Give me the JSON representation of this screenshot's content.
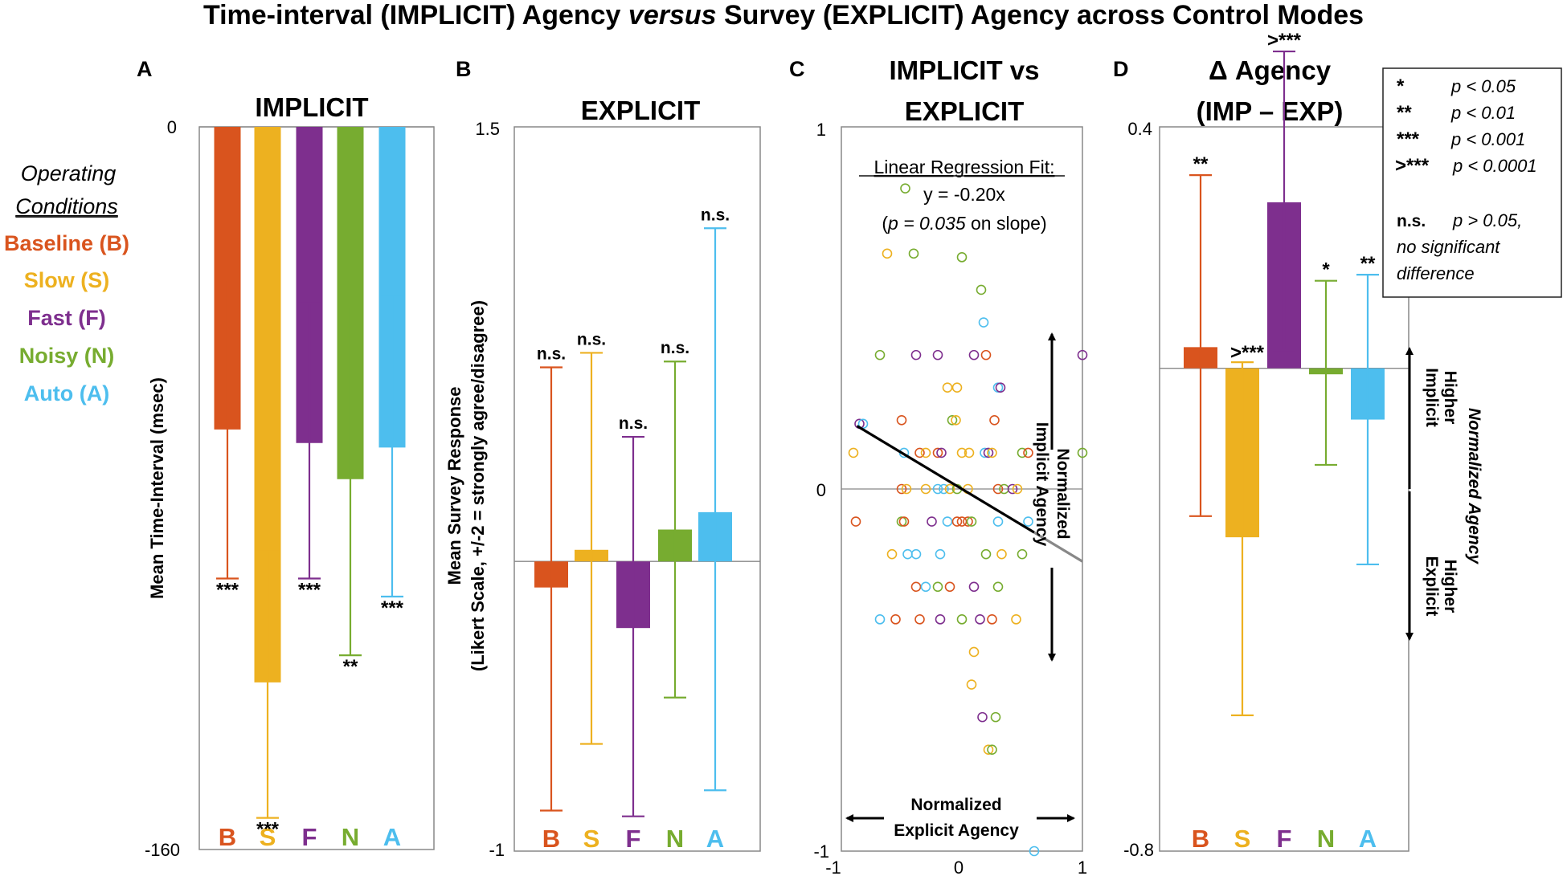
{
  "title": {
    "before": "Time-interval (IMPLICIT) Agency ",
    "italic": "versus",
    "after": " Survey (EXPLICIT) Agency across Control Modes"
  },
  "legend": {
    "heading_line1": "Operating",
    "heading_line2": "Conditions",
    "items": [
      {
        "label": "Baseline (B)",
        "color": "#d9541e"
      },
      {
        "label": "Slow (S)",
        "color": "#edb120"
      },
      {
        "label": "Fast (F)",
        "color": "#7e2f8e"
      },
      {
        "label": "Noisy (N)",
        "color": "#77ac30"
      },
      {
        "label": "Auto (A)",
        "color": "#4dbeee"
      }
    ]
  },
  "significance_key": {
    "rows": [
      {
        "stars": "*",
        "text": "p < 0.05"
      },
      {
        "stars": "**",
        "text": "p < 0.01"
      },
      {
        "stars": "***",
        "text": "p < 0.001"
      },
      {
        "stars": ">***",
        "text": "p < 0.0001"
      }
    ],
    "ns_label": "n.s.",
    "ns_text": "p > 0.05,",
    "ns_line2": "no significant",
    "ns_line3": "difference"
  },
  "chart_data": [
    {
      "panel": "A",
      "type": "bar",
      "title": "IMPLICIT",
      "ylabel": "Mean Time-Interval (msec)",
      "ylim": [
        -160,
        0
      ],
      "yticks": [
        {
          "value": 0,
          "label": "0"
        },
        {
          "value": -160,
          "label": "-160"
        }
      ],
      "categories": [
        "B",
        "S",
        "F",
        "N",
        "A"
      ],
      "colors": [
        "#d9541e",
        "#edb120",
        "#7e2f8e",
        "#77ac30",
        "#4dbeee"
      ],
      "values": [
        -67,
        -123,
        -70,
        -78,
        -71
      ],
      "err_low": [
        -100,
        -153,
        -100,
        -117,
        -104
      ],
      "err_high": [
        -34,
        -94,
        -39,
        -40,
        -37
      ],
      "significance": [
        "***",
        "***",
        "***",
        "**",
        "***"
      ]
    },
    {
      "panel": "B",
      "type": "bar",
      "title": "EXPLICIT",
      "ylabel_line1": "Mean Survey Response",
      "ylabel_line2": "(Likert Scale, +/-2 = strongly agree/disagree)",
      "ylim": [
        -1,
        1.5
      ],
      "yticks": [
        {
          "value": 1.5,
          "label": "1.5"
        },
        {
          "value": -1,
          "label": "-1"
        }
      ],
      "categories": [
        "B",
        "S",
        "F",
        "N",
        "A"
      ],
      "colors": [
        "#d9541e",
        "#edb120",
        "#7e2f8e",
        "#77ac30",
        "#4dbeee"
      ],
      "values": [
        -0.09,
        0.04,
        -0.23,
        0.11,
        0.17
      ],
      "err_low": [
        -0.86,
        -0.63,
        -0.88,
        -0.47,
        -0.79
      ],
      "err_high": [
        0.67,
        0.72,
        0.43,
        0.69,
        1.15
      ],
      "significance": [
        "n.s.",
        "n.s.",
        "n.s.",
        "n.s.",
        "n.s."
      ]
    },
    {
      "panel": "C",
      "type": "scatter",
      "title_line1": "IMPLICIT vs",
      "title_line2": "EXPLICIT",
      "xlim": [
        -1,
        1
      ],
      "ylim": [
        -1,
        1
      ],
      "xticks": [
        {
          "value": -1,
          "label": "-1"
        },
        {
          "value": 0,
          "label": "0"
        },
        {
          "value": 1,
          "label": "1"
        }
      ],
      "yticks": [
        {
          "value": 1,
          "label": "1"
        },
        {
          "value": 0,
          "label": "0"
        },
        {
          "value": -1,
          "label": "-1"
        }
      ],
      "xlabel_line1": "Normalized",
      "xlabel_line2": "Explicit Agency",
      "ylabel_line1": "Normalized",
      "ylabel_line2": "Implicit Agency",
      "regression_heading": "Linear Regression Fit:",
      "regression_eq": "y = -0.20x",
      "regression_p_before": "(",
      "regression_p_italic": "p = 0.035",
      "regression_p_after": " on slope)",
      "slope": -0.2,
      "fit_extent": [
        -0.87,
        0.6
      ],
      "fit_dim_extent": [
        0.6,
        1.0
      ],
      "points": [
        {
          "x": -0.62,
          "y": 0.65,
          "c": 1
        },
        {
          "x": -0.4,
          "y": 0.65,
          "c": 3
        },
        {
          "x": 0.0,
          "y": 0.64,
          "c": 3
        },
        {
          "x": 0.16,
          "y": 0.55,
          "c": 3
        },
        {
          "x": 0.18,
          "y": 0.46,
          "c": 4
        },
        {
          "x": -0.68,
          "y": 0.37,
          "c": 3
        },
        {
          "x": -0.38,
          "y": 0.37,
          "c": 2
        },
        {
          "x": -0.2,
          "y": 0.37,
          "c": 2
        },
        {
          "x": 0.1,
          "y": 0.37,
          "c": 2
        },
        {
          "x": 0.2,
          "y": 0.37,
          "c": 0
        },
        {
          "x": 1.0,
          "y": 0.37,
          "c": 2
        },
        {
          "x": -0.12,
          "y": 0.28,
          "c": 1
        },
        {
          "x": -0.04,
          "y": 0.28,
          "c": 1
        },
        {
          "x": 0.3,
          "y": 0.28,
          "c": 4
        },
        {
          "x": 0.32,
          "y": 0.28,
          "c": 2
        },
        {
          "x": -0.5,
          "y": 0.19,
          "c": 0
        },
        {
          "x": -0.08,
          "y": 0.19,
          "c": 3
        },
        {
          "x": -0.05,
          "y": 0.19,
          "c": 1
        },
        {
          "x": 0.27,
          "y": 0.19,
          "c": 0
        },
        {
          "x": -0.85,
          "y": 0.18,
          "c": 2
        },
        {
          "x": -0.82,
          "y": 0.18,
          "c": 4
        },
        {
          "x": -0.48,
          "y": 0.1,
          "c": 4
        },
        {
          "x": -0.35,
          "y": 0.1,
          "c": 0
        },
        {
          "x": -0.3,
          "y": 0.1,
          "c": 1
        },
        {
          "x": -0.2,
          "y": 0.1,
          "c": 0
        },
        {
          "x": -0.17,
          "y": 0.1,
          "c": 2
        },
        {
          "x": 0.0,
          "y": 0.1,
          "c": 1
        },
        {
          "x": 0.06,
          "y": 0.1,
          "c": 1
        },
        {
          "x": 0.19,
          "y": 0.1,
          "c": 4
        },
        {
          "x": 0.22,
          "y": 0.1,
          "c": 2
        },
        {
          "x": 0.25,
          "y": 0.1,
          "c": 1
        },
        {
          "x": 0.5,
          "y": 0.1,
          "c": 3
        },
        {
          "x": 0.55,
          "y": 0.1,
          "c": 0
        },
        {
          "x": -0.9,
          "y": 0.1,
          "c": 1
        },
        {
          "x": 1.0,
          "y": 0.1,
          "c": 3
        },
        {
          "x": -0.5,
          "y": 0.0,
          "c": 0
        },
        {
          "x": -0.46,
          "y": 0.0,
          "c": 1
        },
        {
          "x": -0.3,
          "y": 0.0,
          "c": 1
        },
        {
          "x": -0.2,
          "y": 0.0,
          "c": 4
        },
        {
          "x": -0.15,
          "y": 0.0,
          "c": 4
        },
        {
          "x": -0.1,
          "y": 0.0,
          "c": 1
        },
        {
          "x": -0.04,
          "y": 0.0,
          "c": 3
        },
        {
          "x": 0.05,
          "y": 0.0,
          "c": 1
        },
        {
          "x": 0.3,
          "y": 0.0,
          "c": 0
        },
        {
          "x": 0.35,
          "y": 0.0,
          "c": 3
        },
        {
          "x": 0.42,
          "y": 0.0,
          "c": 2
        },
        {
          "x": 0.46,
          "y": 0.0,
          "c": 1
        },
        {
          "x": -0.88,
          "y": -0.09,
          "c": 0
        },
        {
          "x": -0.5,
          "y": -0.09,
          "c": 3
        },
        {
          "x": -0.48,
          "y": -0.09,
          "c": 0
        },
        {
          "x": -0.25,
          "y": -0.09,
          "c": 2
        },
        {
          "x": -0.12,
          "y": -0.09,
          "c": 4
        },
        {
          "x": -0.04,
          "y": -0.09,
          "c": 0
        },
        {
          "x": 0.0,
          "y": -0.09,
          "c": 0
        },
        {
          "x": 0.05,
          "y": -0.09,
          "c": 0
        },
        {
          "x": 0.08,
          "y": -0.09,
          "c": 3
        },
        {
          "x": 0.3,
          "y": -0.09,
          "c": 4
        },
        {
          "x": 0.55,
          "y": -0.09,
          "c": 4
        },
        {
          "x": -0.58,
          "y": -0.18,
          "c": 1
        },
        {
          "x": -0.45,
          "y": -0.18,
          "c": 4
        },
        {
          "x": -0.38,
          "y": -0.18,
          "c": 4
        },
        {
          "x": -0.18,
          "y": -0.18,
          "c": 4
        },
        {
          "x": 0.2,
          "y": -0.18,
          "c": 3
        },
        {
          "x": 0.33,
          "y": -0.18,
          "c": 1
        },
        {
          "x": 0.5,
          "y": -0.18,
          "c": 3
        },
        {
          "x": -0.38,
          "y": -0.27,
          "c": 0
        },
        {
          "x": -0.3,
          "y": -0.27,
          "c": 4
        },
        {
          "x": -0.2,
          "y": -0.27,
          "c": 3
        },
        {
          "x": -0.1,
          "y": -0.27,
          "c": 0
        },
        {
          "x": 0.1,
          "y": -0.27,
          "c": 2
        },
        {
          "x": 0.3,
          "y": -0.27,
          "c": 3
        },
        {
          "x": -0.68,
          "y": -0.36,
          "c": 4
        },
        {
          "x": -0.55,
          "y": -0.36,
          "c": 0
        },
        {
          "x": -0.35,
          "y": -0.36,
          "c": 0
        },
        {
          "x": -0.18,
          "y": -0.36,
          "c": 2
        },
        {
          "x": 0.0,
          "y": -0.36,
          "c": 3
        },
        {
          "x": 0.15,
          "y": -0.36,
          "c": 2
        },
        {
          "x": 0.25,
          "y": -0.36,
          "c": 0
        },
        {
          "x": 0.45,
          "y": -0.36,
          "c": 1
        },
        {
          "x": 0.1,
          "y": -0.45,
          "c": 1
        },
        {
          "x": 0.08,
          "y": -0.54,
          "c": 1
        },
        {
          "x": 0.17,
          "y": -0.63,
          "c": 2
        },
        {
          "x": 0.28,
          "y": -0.63,
          "c": 3
        },
        {
          "x": 0.22,
          "y": -0.72,
          "c": 1
        },
        {
          "x": 0.25,
          "y": -0.72,
          "c": 3
        },
        {
          "x": 0.6,
          "y": -1.0,
          "c": 4
        }
      ]
    },
    {
      "panel": "D",
      "type": "bar",
      "title_line1": "Δ Agency",
      "title_line2": "(IMP – EXP)",
      "ylim": [
        -0.8,
        0.4
      ],
      "yticks": [
        {
          "value": 0.4,
          "label": "0.4"
        },
        {
          "value": -0.8,
          "label": "-0.8"
        }
      ],
      "categories": [
        "B",
        "S",
        "F",
        "N",
        "A"
      ],
      "colors": [
        "#d9541e",
        "#edb120",
        "#7e2f8e",
        "#77ac30",
        "#4dbeee"
      ],
      "values": [
        0.035,
        -0.28,
        0.275,
        -0.01,
        -0.085
      ],
      "err_low": [
        -0.245,
        -0.575,
        0.03,
        -0.16,
        -0.325
      ],
      "err_high": [
        0.32,
        0.01,
        0.525,
        0.145,
        0.155
      ],
      "significance": [
        "**",
        ">***",
        ">***",
        "*",
        "**"
      ],
      "annotation_right": "Normalized Agency",
      "annotation_up_line1": "Higher",
      "annotation_up_line2": "Implicit",
      "annotation_down_line1": "Higher",
      "annotation_down_line2": "Explicit"
    }
  ]
}
